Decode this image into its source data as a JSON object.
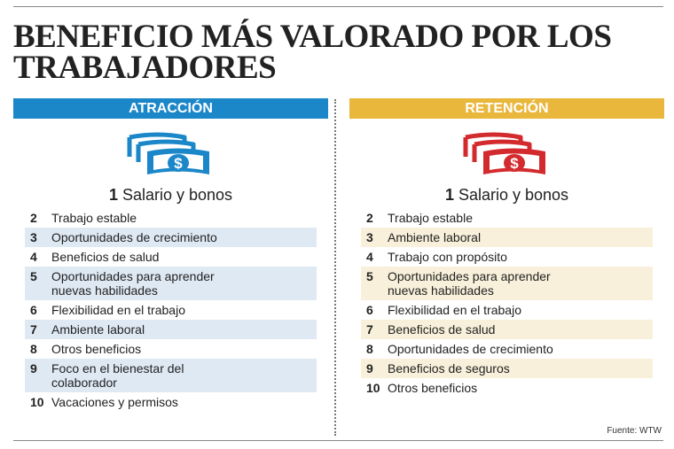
{
  "header": {
    "title": [
      "BENEFICIO MÁS VALORADO POR LOS",
      "TRABAJADORES"
    ]
  },
  "columns": [
    {
      "heading": "ATRACCIÓN",
      "top": {
        "rank": 1,
        "label": "Salario y bonos"
      },
      "items": [
        {
          "rank": 2,
          "label": [
            "Trabajo estable"
          ]
        },
        {
          "rank": 3,
          "label": [
            "Oportunidades de crecimiento"
          ]
        },
        {
          "rank": 4,
          "label": [
            "Beneficios de salud"
          ]
        },
        {
          "rank": 5,
          "label": [
            "Oportunidades para aprender",
            "nuevas habilidades"
          ]
        },
        {
          "rank": 6,
          "label": [
            "Flexibilidad en el trabajo"
          ]
        },
        {
          "rank": 7,
          "label": [
            "Ambiente laboral"
          ]
        },
        {
          "rank": 8,
          "label": [
            "Otros beneficios"
          ]
        },
        {
          "rank": 9,
          "label": [
            "Foco en el bienestar del",
            "colaborador"
          ]
        },
        {
          "rank": 10,
          "label": [
            "Vacaciones y permisos"
          ]
        }
      ]
    },
    {
      "heading": "RETENCIÓN",
      "top": {
        "rank": 1,
        "label": "Salario y bonos"
      },
      "items": [
        {
          "rank": 2,
          "label": [
            "Trabajo estable"
          ]
        },
        {
          "rank": 3,
          "label": [
            "Ambiente laboral"
          ]
        },
        {
          "rank": 4,
          "label": [
            "Trabajo con propósito"
          ]
        },
        {
          "rank": 5,
          "label": [
            "Oportunidades para aprender",
            "nuevas habilidades"
          ]
        },
        {
          "rank": 6,
          "label": [
            "Flexibilidad en el trabajo"
          ]
        },
        {
          "rank": 7,
          "label": [
            "Beneficios de salud"
          ]
        },
        {
          "rank": 8,
          "label": [
            "Oportunidades de crecimiento"
          ]
        },
        {
          "rank": 9,
          "label": [
            "Beneficios de seguros"
          ]
        },
        {
          "rank": 10,
          "label": [
            "Otros beneficios"
          ]
        }
      ]
    }
  ],
  "source": "Fuente: WTW"
}
